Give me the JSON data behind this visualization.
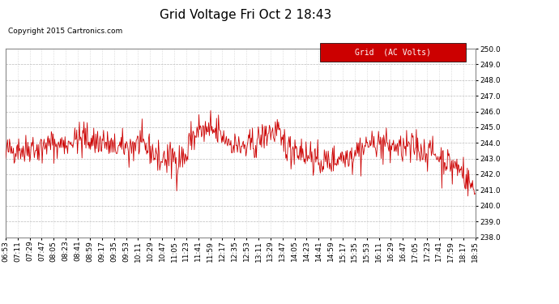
{
  "title": "Grid Voltage Fri Oct 2 18:43",
  "copyright": "Copyright 2015 Cartronics.com",
  "legend_label": "Grid  (AC Volts)",
  "legend_bg": "#cc0000",
  "legend_text_color": "#ffffff",
  "line_color": "#cc0000",
  "bg_color": "#ffffff",
  "grid_color": "#bbbbbb",
  "ylim": [
    238.0,
    250.0
  ],
  "yticks": [
    238.0,
    239.0,
    240.0,
    241.0,
    242.0,
    243.0,
    244.0,
    245.0,
    246.0,
    247.0,
    248.0,
    249.0,
    250.0
  ],
  "xtick_labels": [
    "06:53",
    "07:11",
    "07:29",
    "07:47",
    "08:05",
    "08:23",
    "08:41",
    "08:59",
    "09:17",
    "09:35",
    "09:53",
    "10:11",
    "10:29",
    "10:47",
    "11:05",
    "11:23",
    "11:41",
    "11:59",
    "12:17",
    "12:35",
    "12:53",
    "13:11",
    "13:29",
    "13:47",
    "14:05",
    "14:23",
    "14:41",
    "14:59",
    "15:17",
    "15:35",
    "15:53",
    "16:11",
    "16:29",
    "16:47",
    "17:05",
    "17:23",
    "17:41",
    "17:59",
    "18:17",
    "18:35"
  ],
  "title_fontsize": 11,
  "copyright_fontsize": 6.5,
  "tick_fontsize": 6.5,
  "legend_fontsize": 7
}
